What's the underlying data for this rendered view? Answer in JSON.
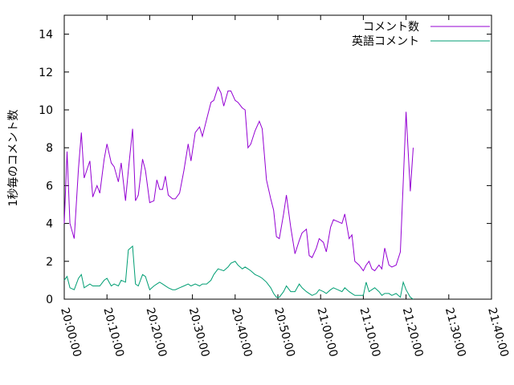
{
  "chart_data": {
    "type": "line",
    "ylabel": "1秒毎のコメント数",
    "xlabel": "",
    "title": "",
    "ylim": [
      0,
      15
    ],
    "yticks": [
      0,
      2,
      4,
      6,
      8,
      10,
      12,
      14
    ],
    "xlim": [
      "20:00:00",
      "21:40:00"
    ],
    "xticks": [
      "20:00:00",
      "20:10:00",
      "20:20:00",
      "20:30:00",
      "20:40:00",
      "20:50:00",
      "21:00:00",
      "21:10:00",
      "21:20:00",
      "21:30:00",
      "21:40:00"
    ],
    "legend_position": "top-right",
    "grid": false,
    "series": [
      {
        "name": "コメント数",
        "color": "#9400d3",
        "points": [
          [
            "20:00:00",
            4.0
          ],
          [
            "20:00:40",
            7.8
          ],
          [
            "20:01:20",
            4.0
          ],
          [
            "20:02:20",
            3.2
          ],
          [
            "20:03:20",
            6.9
          ],
          [
            "20:04:00",
            8.8
          ],
          [
            "20:04:40",
            6.4
          ],
          [
            "20:06:00",
            7.3
          ],
          [
            "20:06:40",
            5.4
          ],
          [
            "20:07:40",
            6.0
          ],
          [
            "20:08:20",
            5.6
          ],
          [
            "20:09:20",
            7.4
          ],
          [
            "20:10:00",
            8.2
          ],
          [
            "20:11:00",
            7.2
          ],
          [
            "20:11:40",
            7.0
          ],
          [
            "20:12:40",
            6.2
          ],
          [
            "20:13:20",
            7.2
          ],
          [
            "20:14:20",
            5.2
          ],
          [
            "20:15:00",
            6.8
          ],
          [
            "20:16:00",
            9.0
          ],
          [
            "20:16:40",
            5.2
          ],
          [
            "20:17:20",
            5.5
          ],
          [
            "20:18:20",
            7.4
          ],
          [
            "20:19:00",
            6.8
          ],
          [
            "20:20:00",
            5.1
          ],
          [
            "20:21:00",
            5.2
          ],
          [
            "20:21:40",
            6.3
          ],
          [
            "20:22:20",
            5.8
          ],
          [
            "20:23:00",
            5.8
          ],
          [
            "20:23:40",
            6.5
          ],
          [
            "20:24:20",
            5.5
          ],
          [
            "20:25:20",
            5.3
          ],
          [
            "20:26:00",
            5.3
          ],
          [
            "20:27:00",
            5.6
          ],
          [
            "20:28:00",
            6.8
          ],
          [
            "20:29:00",
            8.2
          ],
          [
            "20:29:40",
            7.3
          ],
          [
            "20:30:40",
            8.8
          ],
          [
            "20:31:40",
            9.1
          ],
          [
            "20:32:20",
            8.6
          ],
          [
            "20:33:20",
            9.5
          ],
          [
            "20:34:20",
            10.4
          ],
          [
            "20:35:00",
            10.5
          ],
          [
            "20:36:00",
            11.2
          ],
          [
            "20:36:40",
            10.9
          ],
          [
            "20:37:20",
            10.2
          ],
          [
            "20:38:20",
            11.0
          ],
          [
            "20:39:00",
            11.0
          ],
          [
            "20:40:00",
            10.5
          ],
          [
            "20:40:40",
            10.4
          ],
          [
            "20:41:40",
            10.1
          ],
          [
            "20:42:20",
            10.0
          ],
          [
            "20:43:00",
            8.0
          ],
          [
            "20:43:40",
            8.2
          ],
          [
            "20:44:40",
            8.9
          ],
          [
            "20:45:40",
            9.4
          ],
          [
            "20:46:20",
            9.0
          ],
          [
            "20:47:20",
            6.3
          ],
          [
            "20:48:20",
            5.3
          ],
          [
            "20:49:00",
            4.7
          ],
          [
            "20:49:40",
            3.3
          ],
          [
            "20:50:20",
            3.2
          ],
          [
            "20:51:20",
            4.5
          ],
          [
            "20:52:00",
            5.5
          ],
          [
            "20:53:00",
            3.8
          ],
          [
            "20:54:00",
            2.4
          ],
          [
            "20:55:00",
            3.1
          ],
          [
            "20:55:40",
            3.5
          ],
          [
            "20:56:40",
            3.7
          ],
          [
            "20:57:20",
            2.3
          ],
          [
            "20:58:00",
            2.2
          ],
          [
            "20:59:00",
            2.7
          ],
          [
            "20:59:40",
            3.2
          ],
          [
            "21:00:40",
            3.0
          ],
          [
            "21:01:20",
            2.5
          ],
          [
            "21:02:20",
            3.8
          ],
          [
            "21:03:00",
            4.2
          ],
          [
            "21:04:00",
            4.1
          ],
          [
            "21:05:00",
            4.0
          ],
          [
            "21:05:40",
            4.5
          ],
          [
            "21:06:40",
            3.2
          ],
          [
            "21:07:20",
            3.4
          ],
          [
            "21:08:00",
            2.0
          ],
          [
            "21:09:00",
            1.8
          ],
          [
            "21:10:00",
            1.5
          ],
          [
            "21:10:40",
            1.8
          ],
          [
            "21:11:20",
            2.0
          ],
          [
            "21:12:00",
            1.6
          ],
          [
            "21:12:40",
            1.5
          ],
          [
            "21:13:40",
            1.8
          ],
          [
            "21:14:20",
            1.6
          ],
          [
            "21:15:00",
            2.7
          ],
          [
            "21:16:00",
            1.8
          ],
          [
            "21:16:40",
            1.7
          ],
          [
            "21:17:40",
            1.8
          ],
          [
            "21:18:40",
            2.5
          ],
          [
            "21:19:20",
            6.2
          ],
          [
            "21:20:00",
            9.9
          ],
          [
            "21:21:00",
            5.7
          ],
          [
            "21:21:40",
            8.0
          ]
        ]
      },
      {
        "name": "英語コメント",
        "color": "#009e73",
        "points": [
          [
            "20:00:00",
            1.0
          ],
          [
            "20:00:40",
            1.2
          ],
          [
            "20:01:20",
            0.6
          ],
          [
            "20:02:20",
            0.5
          ],
          [
            "20:03:20",
            1.1
          ],
          [
            "20:04:00",
            1.3
          ],
          [
            "20:04:40",
            0.6
          ],
          [
            "20:06:00",
            0.8
          ],
          [
            "20:06:40",
            0.7
          ],
          [
            "20:07:40",
            0.7
          ],
          [
            "20:08:20",
            0.7
          ],
          [
            "20:09:20",
            1.0
          ],
          [
            "20:10:00",
            1.1
          ],
          [
            "20:11:00",
            0.7
          ],
          [
            "20:11:40",
            0.8
          ],
          [
            "20:12:40",
            0.7
          ],
          [
            "20:13:20",
            1.0
          ],
          [
            "20:14:20",
            0.9
          ],
          [
            "20:15:00",
            2.6
          ],
          [
            "20:16:00",
            2.8
          ],
          [
            "20:16:40",
            0.8
          ],
          [
            "20:17:20",
            0.7
          ],
          [
            "20:18:20",
            1.3
          ],
          [
            "20:19:00",
            1.2
          ],
          [
            "20:20:00",
            0.5
          ],
          [
            "20:21:00",
            0.7
          ],
          [
            "20:21:40",
            0.8
          ],
          [
            "20:22:20",
            0.9
          ],
          [
            "20:23:00",
            0.8
          ],
          [
            "20:24:20",
            0.6
          ],
          [
            "20:25:20",
            0.5
          ],
          [
            "20:26:00",
            0.5
          ],
          [
            "20:27:00",
            0.6
          ],
          [
            "20:28:00",
            0.7
          ],
          [
            "20:29:00",
            0.8
          ],
          [
            "20:29:40",
            0.7
          ],
          [
            "20:30:40",
            0.8
          ],
          [
            "20:31:40",
            0.7
          ],
          [
            "20:32:20",
            0.8
          ],
          [
            "20:33:20",
            0.8
          ],
          [
            "20:34:20",
            1.0
          ],
          [
            "20:35:00",
            1.3
          ],
          [
            "20:36:00",
            1.6
          ],
          [
            "20:37:20",
            1.5
          ],
          [
            "20:38:20",
            1.7
          ],
          [
            "20:39:00",
            1.9
          ],
          [
            "20:40:00",
            2.0
          ],
          [
            "20:40:40",
            1.8
          ],
          [
            "20:41:40",
            1.6
          ],
          [
            "20:42:20",
            1.7
          ],
          [
            "20:43:00",
            1.6
          ],
          [
            "20:43:40",
            1.5
          ],
          [
            "20:44:40",
            1.3
          ],
          [
            "20:45:40",
            1.2
          ],
          [
            "20:46:20",
            1.1
          ],
          [
            "20:47:20",
            0.9
          ],
          [
            "20:48:20",
            0.6
          ],
          [
            "20:49:00",
            0.3
          ],
          [
            "20:49:40",
            0.1
          ],
          [
            "20:50:20",
            0.1
          ],
          [
            "20:51:20",
            0.4
          ],
          [
            "20:52:00",
            0.7
          ],
          [
            "20:53:00",
            0.4
          ],
          [
            "20:54:00",
            0.4
          ],
          [
            "20:55:00",
            0.8
          ],
          [
            "20:55:40",
            0.6
          ],
          [
            "20:56:40",
            0.4
          ],
          [
            "20:57:20",
            0.3
          ],
          [
            "20:58:00",
            0.2
          ],
          [
            "20:59:00",
            0.3
          ],
          [
            "20:59:40",
            0.5
          ],
          [
            "21:00:40",
            0.4
          ],
          [
            "21:01:20",
            0.3
          ],
          [
            "21:02:20",
            0.5
          ],
          [
            "21:03:00",
            0.6
          ],
          [
            "21:04:00",
            0.5
          ],
          [
            "21:05:00",
            0.4
          ],
          [
            "21:05:40",
            0.6
          ],
          [
            "21:06:40",
            0.4
          ],
          [
            "21:07:20",
            0.3
          ],
          [
            "21:08:00",
            0.2
          ],
          [
            "21:09:00",
            0.2
          ],
          [
            "21:10:00",
            0.2
          ],
          [
            "21:10:40",
            0.9
          ],
          [
            "21:11:20",
            0.4
          ],
          [
            "21:12:00",
            0.5
          ],
          [
            "21:12:40",
            0.6
          ],
          [
            "21:13:40",
            0.4
          ],
          [
            "21:14:20",
            0.2
          ],
          [
            "21:15:00",
            0.3
          ],
          [
            "21:16:00",
            0.3
          ],
          [
            "21:16:40",
            0.2
          ],
          [
            "21:17:40",
            0.3
          ],
          [
            "21:18:40",
            0.1
          ],
          [
            "21:19:20",
            0.9
          ],
          [
            "21:20:00",
            0.5
          ],
          [
            "21:21:00",
            0.1
          ],
          [
            "21:21:40",
            0.0
          ]
        ]
      }
    ]
  }
}
